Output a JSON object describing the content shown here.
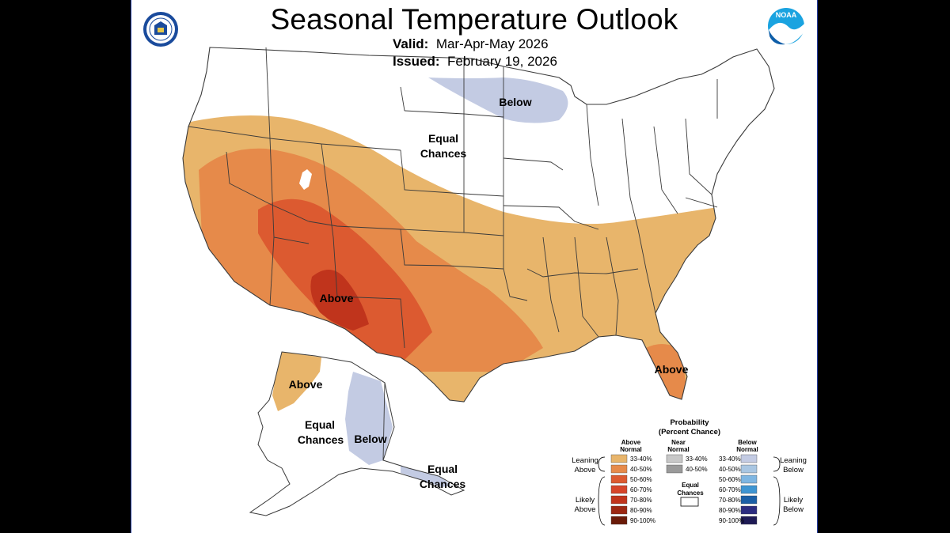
{
  "header": {
    "title": "Seasonal Temperature Outlook",
    "valid_label": "Valid:",
    "valid_value": "Mar-Apr-May 2026",
    "issued_label": "Issued:",
    "issued_value": "February 19, 2026"
  },
  "logos": {
    "left": "doc-seal",
    "right": "NOAA"
  },
  "map_labels": {
    "below_north": "Below",
    "equal_line1": "Equal",
    "equal_line2": "Chances",
    "above_sw": "Above",
    "above_fl": "Above",
    "ak_above": "Above",
    "ak_equal_line1": "Equal",
    "ak_equal_line2": "Chances",
    "ak_below": "Below",
    "ak_se_equal_line1": "Equal",
    "ak_se_equal_line2": "Chances"
  },
  "legend": {
    "title_line1": "Probability",
    "title_line2": "(Percent Chance)",
    "above_head_1": "Above",
    "above_head_2": "Normal",
    "near_head_1": "Near",
    "near_head_2": "Normal",
    "below_head_1": "Below",
    "below_head_2": "Normal",
    "leaning_above_1": "Leaning",
    "leaning_above_2": "Above",
    "likely_above_1": "Likely",
    "likely_above_2": "Above",
    "leaning_below_1": "Leaning",
    "leaning_below_2": "Below",
    "likely_below_1": "Likely",
    "likely_below_2": "Below",
    "equal_1": "Equal",
    "equal_2": "Chances",
    "above_bins": [
      {
        "label": "33-40%",
        "color": "#E8B56B"
      },
      {
        "label": "40-50%",
        "color": "#E68A4A"
      },
      {
        "label": "50-60%",
        "color": "#DC5A30"
      },
      {
        "label": "60-70%",
        "color": "#D6452A"
      },
      {
        "label": "70-80%",
        "color": "#C0341C"
      },
      {
        "label": "80-90%",
        "color": "#9C2712"
      },
      {
        "label": "90-100%",
        "color": "#6A1A08"
      }
    ],
    "near_bins": [
      {
        "label": "33-40%",
        "color": "#C8C8C8"
      },
      {
        "label": "40-50%",
        "color": "#9A9A9A"
      }
    ],
    "below_bins": [
      {
        "label": "33-40%",
        "color": "#C3CBE3"
      },
      {
        "label": "40-50%",
        "color": "#A9C6E2"
      },
      {
        "label": "50-60%",
        "color": "#7FB6E2"
      },
      {
        "label": "60-70%",
        "color": "#3F95D2"
      },
      {
        "label": "70-80%",
        "color": "#1B5FA6"
      },
      {
        "label": "80-90%",
        "color": "#2C2C80"
      },
      {
        "label": "90-100%",
        "color": "#1E1A55"
      }
    ]
  }
}
